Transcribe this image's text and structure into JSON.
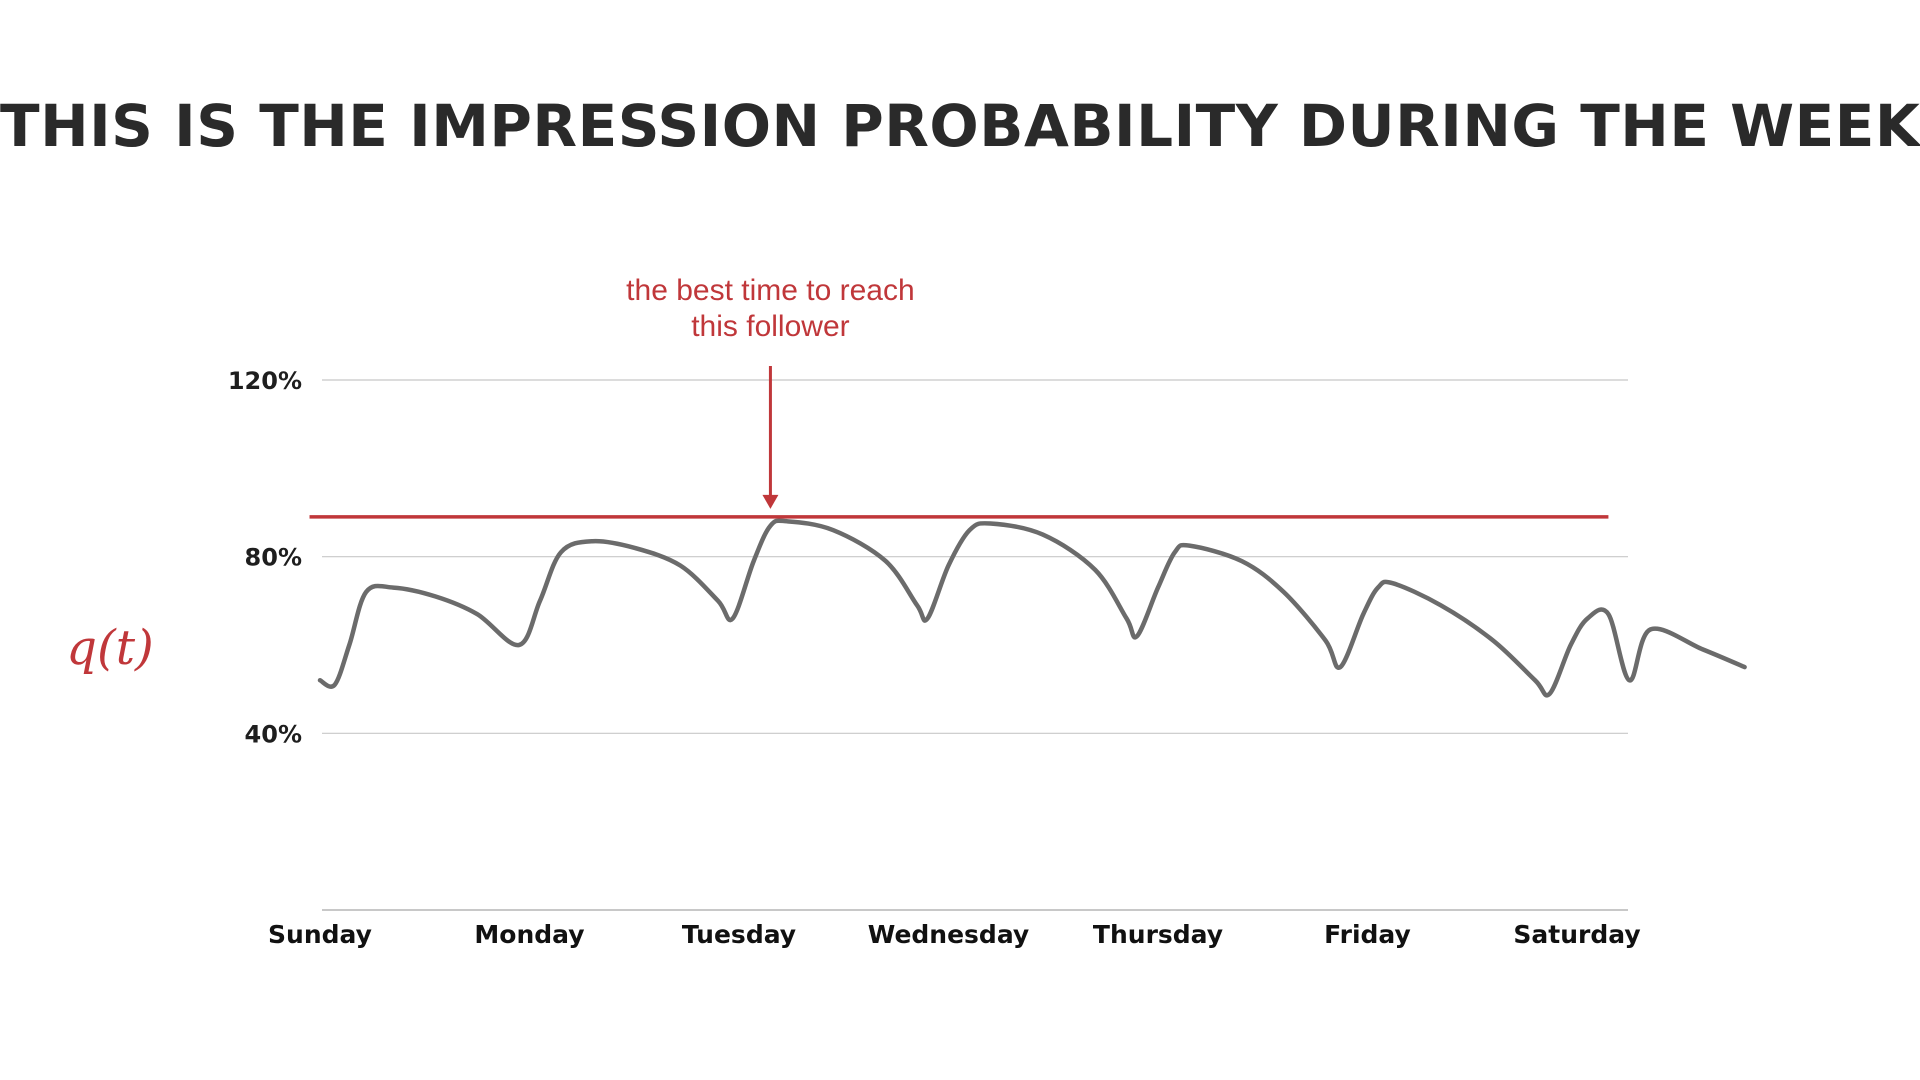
{
  "title": "THIS IS THE IMPRESSION PROBABILITY DURING THE WEEK",
  "colors": {
    "accent": "#c0373a",
    "curve": "#6b6b6b",
    "grid": "#c8c8c8",
    "text": "#2a2a2a"
  },
  "chart_data": {
    "type": "line",
    "title": "THIS IS THE IMPRESSION PROBABILITY DURING THE WEEK",
    "xlabel": "",
    "ylabel": "q(t)",
    "x_range": [
      0,
      6.25
    ],
    "ylim": [
      0,
      120
    ],
    "yticks": [
      {
        "value": 120,
        "label": "120%"
      },
      {
        "value": 80,
        "label": "80%"
      },
      {
        "value": 40,
        "label": "40%"
      }
    ],
    "categories": [
      "Sunday",
      "Monday",
      "Tuesday",
      "Wednesday",
      "Thursday",
      "Friday",
      "Saturday"
    ],
    "category_positions": [
      0,
      1,
      2,
      3,
      4,
      5,
      6
    ],
    "threshold": {
      "value": 89,
      "x_start": -0.05,
      "x_end": 6.15
    },
    "annotation": {
      "lines": [
        "the best time to reach",
        "this follower"
      ],
      "x": 2.15,
      "y": 89
    },
    "series": [
      {
        "name": "q(t)",
        "points": [
          [
            0.0,
            52
          ],
          [
            0.07,
            51
          ],
          [
            0.14,
            60
          ],
          [
            0.22,
            72
          ],
          [
            0.35,
            73
          ],
          [
            0.55,
            71
          ],
          [
            0.75,
            67
          ],
          [
            0.95,
            60
          ],
          [
            1.05,
            70
          ],
          [
            1.15,
            81
          ],
          [
            1.3,
            83.5
          ],
          [
            1.5,
            82
          ],
          [
            1.72,
            78
          ],
          [
            1.9,
            70
          ],
          [
            1.97,
            66
          ],
          [
            2.07,
            79
          ],
          [
            2.15,
            87
          ],
          [
            2.23,
            88
          ],
          [
            2.45,
            86
          ],
          [
            2.7,
            79
          ],
          [
            2.85,
            69
          ],
          [
            2.9,
            66
          ],
          [
            3.0,
            78
          ],
          [
            3.1,
            86
          ],
          [
            3.2,
            87.5
          ],
          [
            3.45,
            85
          ],
          [
            3.7,
            77
          ],
          [
            3.85,
            66
          ],
          [
            3.9,
            62
          ],
          [
            4.0,
            73
          ],
          [
            4.08,
            81
          ],
          [
            4.15,
            82.5
          ],
          [
            4.4,
            79
          ],
          [
            4.6,
            72
          ],
          [
            4.8,
            61
          ],
          [
            4.87,
            55
          ],
          [
            4.98,
            67
          ],
          [
            5.05,
            73
          ],
          [
            5.12,
            74
          ],
          [
            5.35,
            69
          ],
          [
            5.6,
            61
          ],
          [
            5.8,
            52
          ],
          [
            5.87,
            49
          ],
          [
            5.97,
            60
          ],
          [
            6.05,
            66
          ],
          [
            6.15,
            67
          ],
          [
            6.35,
            63.5
          ],
          [
            6.6,
            59
          ],
          [
            6.8,
            55
          ],
          [
            6.25,
            52
          ]
        ]
      }
    ]
  }
}
